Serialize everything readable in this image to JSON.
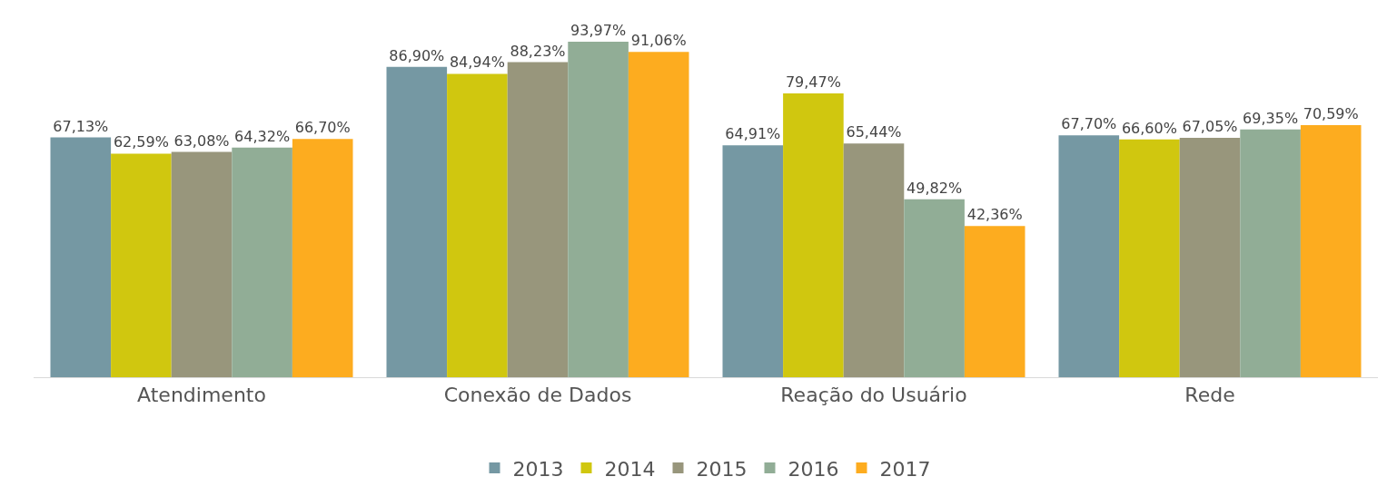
{
  "chart_data": {
    "type": "bar",
    "categories": [
      "Atendimento",
      "Conexão de Dados",
      "Reação do Usuário",
      "Rede"
    ],
    "series": [
      {
        "name": "2013",
        "color": "#7598a3",
        "values": [
          67.13,
          86.9,
          64.91,
          67.7
        ],
        "value_labels": [
          "67,13%",
          "86,90%",
          "64,91%",
          "67,70%"
        ]
      },
      {
        "name": "2014",
        "color": "#d0c70f",
        "values": [
          62.59,
          84.94,
          79.47,
          66.6
        ],
        "value_labels": [
          "62,59%",
          "84,94%",
          "79,47%",
          "66,60%"
        ]
      },
      {
        "name": "2015",
        "color": "#98967c",
        "values": [
          63.08,
          88.23,
          65.44,
          67.05
        ],
        "value_labels": [
          "63,08%",
          "88,23%",
          "65,44%",
          "67,05%"
        ]
      },
      {
        "name": "2016",
        "color": "#91ad96",
        "values": [
          64.32,
          93.97,
          49.82,
          69.35
        ],
        "value_labels": [
          "64,32%",
          "93,97%",
          "49,82%",
          "69,35%"
        ]
      },
      {
        "name": "2017",
        "color": "#fdac1f",
        "values": [
          66.7,
          91.06,
          42.36,
          70.59
        ],
        "value_labels": [
          "66,70%",
          "91,06%",
          "42,36%",
          "70,59%"
        ]
      }
    ],
    "legend": "bottom"
  }
}
